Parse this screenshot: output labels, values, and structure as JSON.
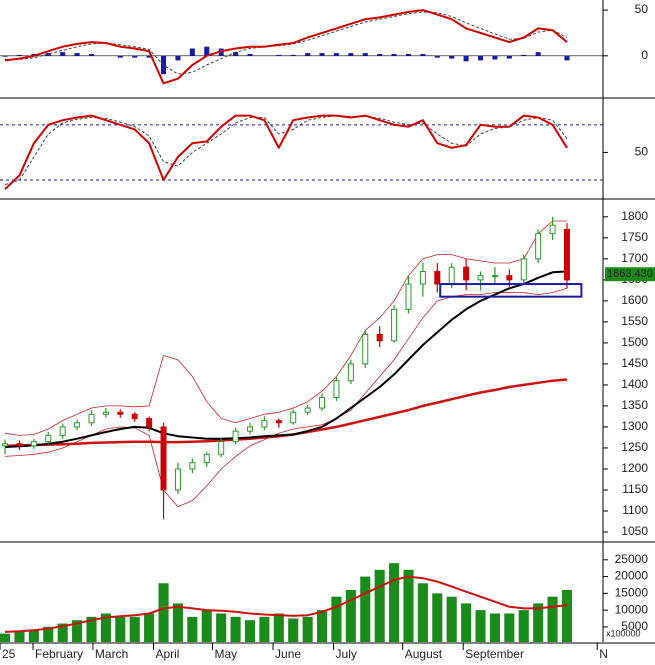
{
  "chart_data": [
    {
      "type": "line",
      "x": [
        0,
        1,
        2,
        3,
        4,
        5,
        6,
        7,
        8,
        9,
        10,
        11,
        12,
        13,
        14,
        15,
        16,
        17,
        18,
        19,
        20,
        21,
        22,
        23,
        24,
        25,
        26,
        27,
        28,
        29,
        30,
        31,
        32,
        33,
        34,
        35,
        36,
        37,
        38,
        39
      ],
      "ylim": [
        -45,
        61
      ],
      "yticks": [
        0,
        50
      ],
      "zero_line": true,
      "series": [
        {
          "kind": "bar",
          "color": "#1a1aa8",
          "values": [
            -1,
            1,
            2,
            3,
            4,
            3,
            2,
            0,
            -2,
            -2,
            -2,
            -20,
            -5,
            8,
            10,
            8,
            4,
            2,
            0,
            1,
            1,
            3,
            3,
            3,
            3,
            3,
            2,
            2,
            2,
            2,
            -2,
            -3,
            -6,
            -5,
            -4,
            -3,
            1,
            4,
            0,
            -5
          ]
        },
        {
          "kind": "line",
          "color": "#444444",
          "style": "dashed",
          "values": [
            -4,
            -4,
            -2,
            2,
            6,
            10,
            13,
            14,
            12,
            10,
            7,
            -10,
            -20,
            -18,
            -10,
            -3,
            4,
            8,
            10,
            11,
            13,
            17,
            22,
            27,
            32,
            37,
            40,
            43,
            46,
            48,
            47,
            43,
            36,
            30,
            24,
            18,
            19,
            26,
            28,
            20
          ]
        },
        {
          "kind": "line",
          "color": "#d00000",
          "values": [
            -5,
            -3,
            0,
            5,
            10,
            13,
            15,
            14,
            10,
            8,
            5,
            -30,
            -25,
            -10,
            0,
            5,
            8,
            10,
            10,
            12,
            14,
            20,
            25,
            30,
            35,
            40,
            42,
            45,
            48,
            50,
            45,
            40,
            30,
            25,
            20,
            15,
            20,
            30,
            28,
            15
          ]
        }
      ]
    },
    {
      "type": "line",
      "x": [
        0,
        1,
        2,
        3,
        4,
        5,
        6,
        7,
        8,
        9,
        10,
        11,
        12,
        13,
        14,
        15,
        16,
        17,
        18,
        19,
        20,
        21,
        22,
        23,
        24,
        25,
        26,
        27,
        28,
        29,
        30,
        31,
        32,
        33,
        34,
        35,
        36,
        37,
        38,
        39
      ],
      "ylim": [
        1.5,
        107
      ],
      "yticks": [
        50
      ],
      "levels": [
        20,
        80
      ],
      "series": [
        {
          "kind": "line",
          "color": "#444444",
          "style": "dashed",
          "values": [
            15,
            20,
            45,
            70,
            82,
            86,
            88,
            87,
            83,
            78,
            68,
            40,
            35,
            50,
            60,
            70,
            82,
            88,
            88,
            70,
            75,
            85,
            88,
            90,
            89,
            89,
            87,
            83,
            80,
            82,
            70,
            60,
            57,
            70,
            76,
            78,
            85,
            88,
            85,
            65
          ]
        },
        {
          "kind": "line",
          "color": "#d00000",
          "values": [
            10,
            25,
            60,
            80,
            85,
            88,
            90,
            85,
            80,
            75,
            60,
            20,
            45,
            60,
            62,
            78,
            90,
            90,
            85,
            55,
            85,
            88,
            90,
            90,
            88,
            90,
            85,
            80,
            78,
            85,
            60,
            55,
            58,
            80,
            78,
            78,
            90,
            88,
            80,
            55
          ]
        }
      ]
    },
    {
      "type": "candlestick",
      "x": [
        0,
        1,
        2,
        3,
        4,
        5,
        6,
        7,
        8,
        9,
        10,
        11,
        12,
        13,
        14,
        15,
        16,
        17,
        18,
        19,
        20,
        21,
        22,
        23,
        24,
        25,
        26,
        27,
        28,
        29,
        30,
        31,
        32,
        33,
        34,
        35,
        36,
        37,
        38,
        39
      ],
      "ylim": [
        1031,
        1840
      ],
      "yticks": [
        1050,
        1100,
        1150,
        1200,
        1250,
        1300,
        1350,
        1400,
        1450,
        1500,
        1550,
        1600,
        1650,
        1700,
        1750,
        1800
      ],
      "up_color": "#2a9a2a",
      "down_color": "#cc0000",
      "open": [
        1255,
        1260,
        1255,
        1265,
        1280,
        1300,
        1310,
        1330,
        1335,
        1330,
        1320,
        1300,
        1150,
        1200,
        1215,
        1235,
        1265,
        1290,
        1300,
        1315,
        1310,
        1335,
        1345,
        1370,
        1410,
        1450,
        1520,
        1505,
        1580,
        1640,
        1670,
        1640,
        1680,
        1650,
        1660,
        1660,
        1650,
        1700,
        1760,
        1770
      ],
      "high": [
        1270,
        1268,
        1272,
        1288,
        1308,
        1318,
        1340,
        1345,
        1342,
        1335,
        1325,
        1310,
        1215,
        1225,
        1240,
        1275,
        1298,
        1310,
        1325,
        1320,
        1342,
        1352,
        1380,
        1420,
        1460,
        1530,
        1540,
        1590,
        1660,
        1690,
        1690,
        1690,
        1700,
        1670,
        1680,
        1675,
        1710,
        1770,
        1800,
        1785
      ],
      "low": [
        1235,
        1245,
        1248,
        1258,
        1272,
        1292,
        1302,
        1322,
        1322,
        1312,
        1290,
        1080,
        1140,
        1190,
        1205,
        1228,
        1258,
        1282,
        1292,
        1298,
        1305,
        1328,
        1338,
        1362,
        1402,
        1440,
        1490,
        1500,
        1570,
        1610,
        1620,
        1630,
        1625,
        1625,
        1640,
        1630,
        1640,
        1690,
        1745,
        1630
      ],
      "close": [
        1260,
        1255,
        1265,
        1280,
        1300,
        1310,
        1330,
        1335,
        1330,
        1320,
        1300,
        1150,
        1200,
        1215,
        1235,
        1265,
        1290,
        1300,
        1315,
        1310,
        1335,
        1345,
        1370,
        1410,
        1450,
        1520,
        1505,
        1580,
        1640,
        1670,
        1640,
        1680,
        1650,
        1660,
        1660,
        1650,
        1700,
        1760,
        1780,
        1650
      ],
      "series": [
        {
          "kind": "line",
          "color": "#cc2222",
          "width": 0.8,
          "values": [
            1285,
            1280,
            1282,
            1295,
            1315,
            1330,
            1345,
            1350,
            1350,
            1348,
            1350,
            1470,
            1460,
            1420,
            1360,
            1320,
            1310,
            1320,
            1330,
            1335,
            1345,
            1360,
            1385,
            1420,
            1470,
            1530,
            1560,
            1600,
            1660,
            1700,
            1710,
            1710,
            1700,
            1695,
            1690,
            1690,
            1700,
            1760,
            1790,
            1790
          ]
        },
        {
          "kind": "line",
          "color": "#cc2222",
          "width": 0.8,
          "values": [
            1230,
            1232,
            1235,
            1240,
            1250,
            1265,
            1280,
            1295,
            1300,
            1298,
            1280,
            1150,
            1110,
            1125,
            1160,
            1200,
            1230,
            1255,
            1270,
            1285,
            1295,
            1300,
            1305,
            1320,
            1340,
            1380,
            1420,
            1460,
            1510,
            1560,
            1600,
            1610,
            1615,
            1615,
            1620,
            1620,
            1620,
            1615,
            1620,
            1630
          ]
        },
        {
          "kind": "line",
          "color": "#cc1111",
          "width": 2.5,
          "values": [
            1255,
            1256,
            1257,
            1258,
            1259,
            1260,
            1262,
            1263,
            1264,
            1265,
            1265,
            1264,
            1264,
            1265,
            1266,
            1268,
            1270,
            1272,
            1275,
            1278,
            1282,
            1288,
            1294,
            1300,
            1308,
            1316,
            1324,
            1332,
            1340,
            1350,
            1358,
            1366,
            1374,
            1382,
            1388,
            1395,
            1400,
            1405,
            1410,
            1413
          ]
        },
        {
          "kind": "line",
          "color": "#000000",
          "width": 2,
          "values": [
            1252,
            1254,
            1256,
            1260,
            1265,
            1272,
            1280,
            1288,
            1295,
            1300,
            1298,
            1285,
            1278,
            1275,
            1272,
            1272,
            1273,
            1275,
            1278,
            1280,
            1282,
            1290,
            1300,
            1320,
            1345,
            1370,
            1395,
            1425,
            1460,
            1495,
            1525,
            1555,
            1580,
            1600,
            1615,
            1630,
            1640,
            1655,
            1668,
            1670
          ]
        }
      ],
      "highlight": {
        "x": [
          30.2,
          40
        ],
        "y": [
          1610,
          1640
        ],
        "color": "#1a1aa8"
      },
      "last_price": {
        "value": 1663.43,
        "label": "1663.430",
        "color": "#1b8a1b"
      }
    },
    {
      "type": "bar",
      "x": [
        0,
        1,
        2,
        3,
        4,
        5,
        6,
        7,
        8,
        9,
        10,
        11,
        12,
        13,
        14,
        15,
        16,
        17,
        18,
        19,
        20,
        21,
        22,
        23,
        24,
        25,
        26,
        27,
        28,
        29,
        30,
        31,
        32,
        33,
        34,
        35,
        36,
        37,
        38,
        39
      ],
      "xlim": [
        -0.35,
        41.5
      ],
      "xticks": [
        {
          "value": -0.35,
          "label": "25"
        },
        {
          "value": 1.94,
          "label": "February"
        },
        {
          "value": 6.1,
          "label": "March"
        },
        {
          "value": 10.3,
          "label": "April"
        },
        {
          "value": 14.4,
          "label": "May"
        },
        {
          "value": 18.6,
          "label": "June"
        },
        {
          "value": 22.8,
          "label": "July"
        },
        {
          "value": 27.6,
          "label": "August"
        },
        {
          "value": 31.8,
          "label": "September"
        },
        {
          "value": 41.1,
          "label": "N"
        }
      ],
      "ylim": [
        500,
        30000
      ],
      "yticks": [
        5000,
        10000,
        15000,
        20000,
        25000
      ],
      "unit_label": "x100000",
      "series": [
        {
          "kind": "bar",
          "color": "#1a8a1a",
          "values": [
            3000,
            3500,
            4000,
            5000,
            6000,
            7000,
            8000,
            9000,
            8000,
            8000,
            9000,
            18000,
            12000,
            8000,
            10000,
            9000,
            8000,
            7000,
            8000,
            9000,
            7500,
            8000,
            10000,
            14000,
            16000,
            20000,
            22000,
            24000,
            22000,
            18000,
            15000,
            14000,
            12000,
            10000,
            9000,
            9000,
            10000,
            12000,
            14000,
            16000
          ]
        },
        {
          "kind": "line",
          "color": "#cc1111",
          "values": [
            3500,
            3700,
            4000,
            4500,
            5200,
            6000,
            7000,
            7800,
            8200,
            8500,
            9000,
            10500,
            11000,
            10500,
            10000,
            9800,
            9500,
            9000,
            8700,
            8500,
            8300,
            8500,
            9500,
            11000,
            13000,
            15000,
            17000,
            19000,
            20000,
            19500,
            18500,
            17000,
            15500,
            14000,
            12500,
            11000,
            10500,
            10500,
            11000,
            11500
          ]
        }
      ]
    }
  ]
}
